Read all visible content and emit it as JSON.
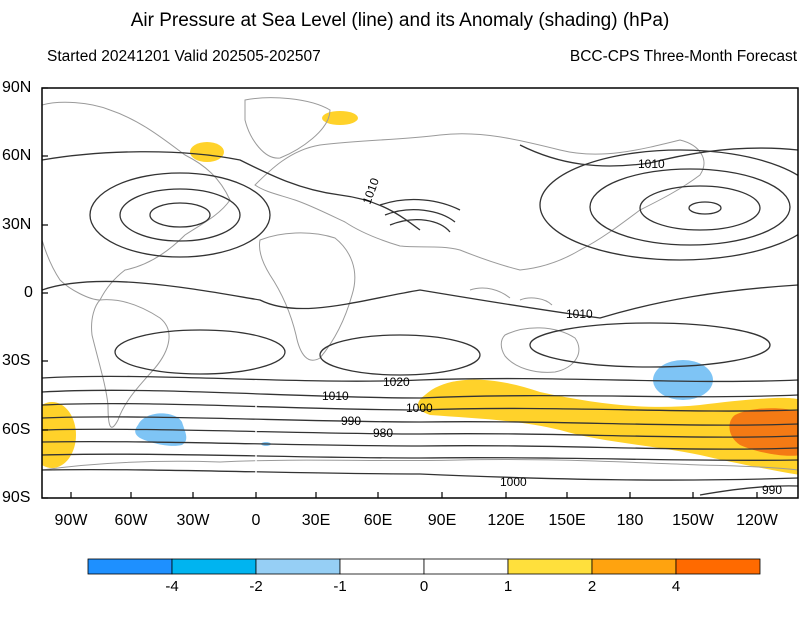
{
  "header": {
    "title": "Air Pressure at Sea Level (line) and its Anomaly (shading) (hPa)",
    "subtitle_left": "Started 20241201  Valid 202505-202507",
    "subtitle_right": "BCC-CPS Three-Month Forecast"
  },
  "axes": {
    "y_ticks": [
      "90N",
      "60N",
      "30N",
      "0",
      "30S",
      "60S",
      "90S"
    ],
    "x_ticks": [
      "90W",
      "60W",
      "30W",
      "0",
      "30E",
      "60E",
      "90E",
      "120E",
      "150E",
      "180",
      "150W",
      "120W"
    ]
  },
  "contour_labels": [
    "1010",
    "1010",
    "1010",
    "1020",
    "1010",
    "1000",
    "990",
    "980",
    "1000",
    "990"
  ],
  "colorbar": {
    "labels": [
      "-4",
      "-2",
      "-1",
      "0",
      "1",
      "2",
      "4"
    ],
    "colors": [
      "#1e90ff",
      "#00b4f0",
      "#96cff5",
      "#ffffff",
      "#ffffff",
      "#ffe03c",
      "#ffa30f",
      "#ff6a00"
    ]
  },
  "colors": {
    "land_outline": "#9a9a9a",
    "contour": "#333333",
    "positive_anom": "#ffd22a",
    "strong_anom": "#f47a14",
    "negative_anom": "#7ec4f5"
  }
}
